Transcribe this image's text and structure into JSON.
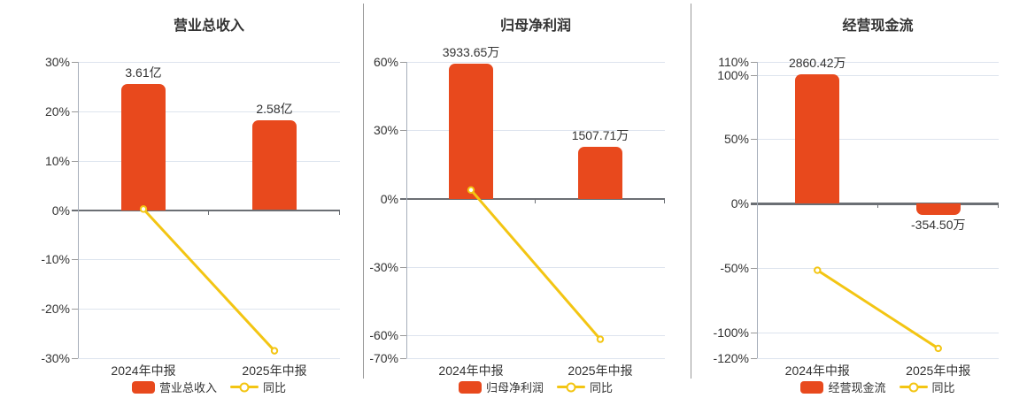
{
  "colors": {
    "background": "#ffffff",
    "bar_color": "#e8491d",
    "line_color": "#f3c513",
    "marker_fill": "#ffffff",
    "grid_color": "#dde4ee",
    "axis_color": "#a6aeba",
    "zero_line_color": "#6b6f74",
    "tick_color": "#999999",
    "text_color": "#333333",
    "divider_color": "#999999"
  },
  "chart_data": [
    {
      "type": "bar+line",
      "title": "营业总收入",
      "categories": [
        "2024年中报",
        "2025年中报"
      ],
      "series": [
        {
          "name": "营业总收入",
          "type": "bar",
          "value_labels": [
            "3.61亿",
            "2.58亿"
          ],
          "display_pct": [
            25.5,
            18.2
          ]
        },
        {
          "name": "同比",
          "type": "line",
          "values_pct": [
            0.2,
            -28.5
          ]
        }
      ],
      "ylim": [
        -30,
        30
      ],
      "yticks": [
        30,
        20,
        10,
        0,
        -10,
        -20,
        -30
      ],
      "tick_suffix": "%",
      "grid": true,
      "legend_position": "bottom"
    },
    {
      "type": "bar+line",
      "title": "归母净利润",
      "categories": [
        "2024年中报",
        "2025年中报"
      ],
      "series": [
        {
          "name": "归母净利润",
          "type": "bar",
          "value_labels": [
            "3933.65万",
            "1507.71万"
          ],
          "display_pct": [
            59.3,
            22.7
          ]
        },
        {
          "name": "同比",
          "type": "line",
          "values_pct": [
            3.8,
            -61.7
          ]
        }
      ],
      "ylim": [
        -70,
        60
      ],
      "yticks": [
        60,
        30,
        0,
        -30,
        -60,
        -70
      ],
      "tick_suffix": "%",
      "grid": true,
      "legend_position": "bottom"
    },
    {
      "type": "bar+line",
      "title": "经营现金流",
      "categories": [
        "2024年中报",
        "2025年中报"
      ],
      "series": [
        {
          "name": "经营现金流",
          "type": "bar",
          "value_labels": [
            "2860.42万",
            "-354.50万"
          ],
          "display_pct": [
            100.5,
            -9
          ]
        },
        {
          "name": "同比",
          "type": "line",
          "values_pct": [
            -51.7,
            -112.4
          ]
        }
      ],
      "ylim": [
        -120,
        110
      ],
      "yticks": [
        110,
        100,
        50,
        0,
        -50,
        -100,
        -120
      ],
      "tick_suffix": "%",
      "grid": true,
      "legend_position": "bottom"
    }
  ]
}
